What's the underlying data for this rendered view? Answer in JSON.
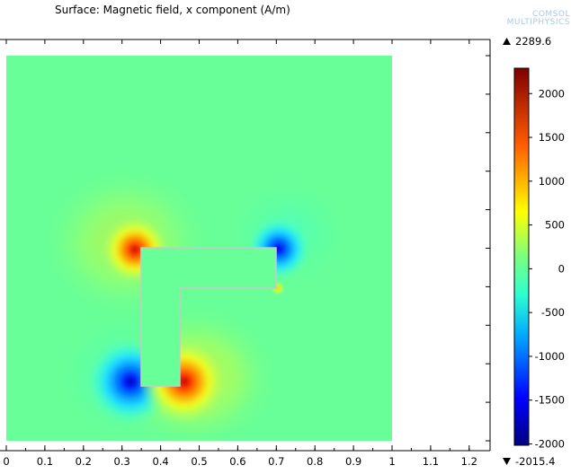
{
  "title": "Surface: Magnetic field, x component (A/m)",
  "logo": {
    "line1": "COMSOL",
    "line2": "MULTIPHYSICS"
  },
  "colorbar": {
    "max_label": "2289.6",
    "min_label": "-2015.4",
    "ticks": [
      {
        "value": 2000,
        "label": "2000"
      },
      {
        "value": 1500,
        "label": "1500"
      },
      {
        "value": 1000,
        "label": "1000"
      },
      {
        "value": 500,
        "label": "500"
      },
      {
        "value": 0,
        "label": "0"
      },
      {
        "value": -500,
        "label": "-500"
      },
      {
        "value": -1000,
        "label": "-1000"
      },
      {
        "value": -1500,
        "label": "-1500"
      },
      {
        "value": -2000,
        "label": "-2000"
      }
    ],
    "range": [
      -2015.4,
      2289.6
    ],
    "colormap": "rainbow"
  },
  "chart_data": {
    "type": "heatmap",
    "title": "Surface: Magnetic field, x component (A/m)",
    "field": "Magnetic field, x component",
    "unit": "A/m",
    "value_range": [
      -2015.4,
      2289.6
    ],
    "x_ticks": [
      "0",
      "0.1",
      "0.2",
      "0.3",
      "0.4",
      "0.5",
      "0.6",
      "0.7",
      "0.8",
      "0.9",
      "1",
      "1.1",
      "1.2"
    ],
    "xlim": [
      0,
      1.24
    ],
    "domain": {
      "x": [
        0,
        1
      ],
      "y": [
        0,
        1
      ]
    },
    "l_shape_outline": [
      [
        0.35,
        0.5
      ],
      [
        0.7,
        0.5
      ],
      [
        0.7,
        0.4
      ],
      [
        0.45,
        0.4
      ],
      [
        0.45,
        0.14
      ],
      [
        0.35,
        0.14
      ]
    ],
    "hotspots": [
      {
        "x": 0.35,
        "y": 0.5,
        "value": 2100,
        "kind": "max"
      },
      {
        "x": 0.45,
        "y": 0.14,
        "value": 2289.6,
        "kind": "max"
      },
      {
        "x": 0.7,
        "y": 0.5,
        "value": -1900,
        "kind": "min"
      },
      {
        "x": 0.35,
        "y": 0.14,
        "value": -2015.4,
        "kind": "min"
      },
      {
        "x": 0.7,
        "y": 0.4,
        "value": 700,
        "kind": "max"
      }
    ]
  }
}
